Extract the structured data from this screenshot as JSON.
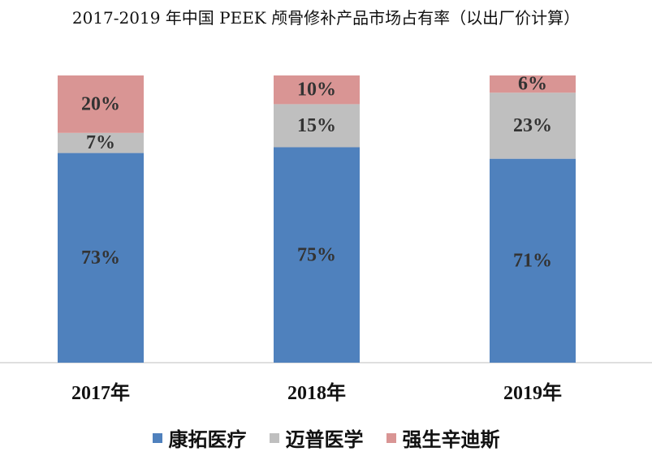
{
  "chart_data": {
    "type": "bar",
    "stacked": true,
    "title": "2017-2019 年中国 PEEK 颅骨修补产品市场占有率（以出厂价计算）",
    "categories": [
      "2017年",
      "2018年",
      "2019年"
    ],
    "series": [
      {
        "name": "康拓医疗",
        "values": [
          73,
          75,
          71
        ],
        "labels": [
          "73%",
          "75%",
          "71%"
        ],
        "color": "#4f81bd"
      },
      {
        "name": "迈普医学",
        "values": [
          7,
          15,
          23
        ],
        "labels": [
          "7%",
          "15%",
          "23%"
        ],
        "color": "#bfbfbf"
      },
      {
        "name": "强生辛迪斯",
        "values": [
          20,
          10,
          6
        ],
        "labels": [
          "20%",
          "10%",
          "6%"
        ],
        "color": "#d99594"
      }
    ],
    "ylim": [
      0,
      100
    ],
    "grid": false,
    "legend_position": "bottom"
  }
}
